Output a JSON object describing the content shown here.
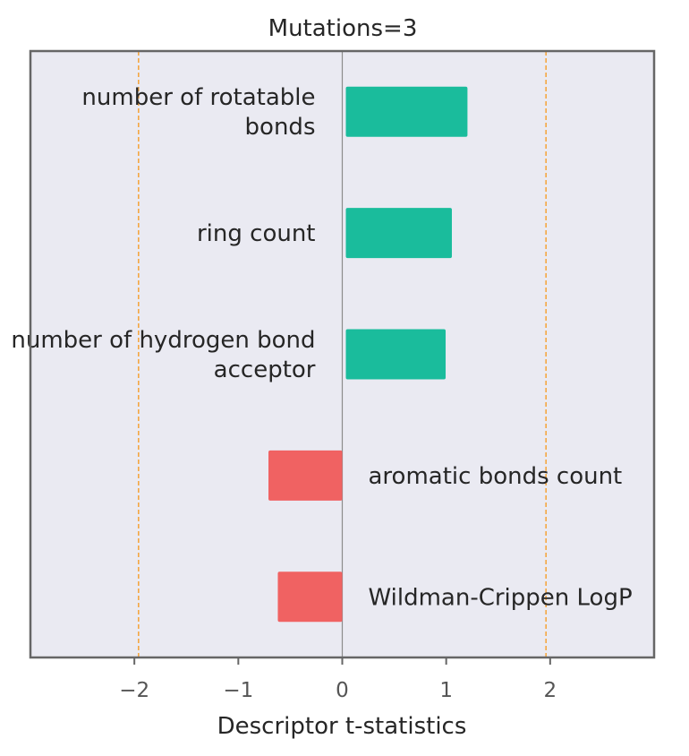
{
  "chart_data": {
    "type": "bar",
    "orientation": "horizontal",
    "title": "Mutations=3",
    "xlabel": "Descriptor t-statistics",
    "ylabel": "",
    "xlim": [
      -3,
      3
    ],
    "xticks": [
      -2,
      -1,
      0,
      1,
      2
    ],
    "xtick_labels": [
      "−2",
      "−1",
      "0",
      "1",
      "2"
    ],
    "threshold_lines": [
      -1.96,
      1.96
    ],
    "categories": [
      "number of rotatable bonds",
      "ring count",
      "number of hydrogen bond acceptor",
      "aromatic bonds count",
      "Wildman-Crippen LogP"
    ],
    "values": [
      1.17,
      1.02,
      0.96,
      -0.71,
      -0.62
    ],
    "colors": {
      "positive": "#1abc9c",
      "negative": "#f06262",
      "threshold": "#f5a742",
      "zero_line": "#8c8c8c",
      "plot_background": "#eaeaf2",
      "frame": "#666666"
    },
    "grid": false
  }
}
